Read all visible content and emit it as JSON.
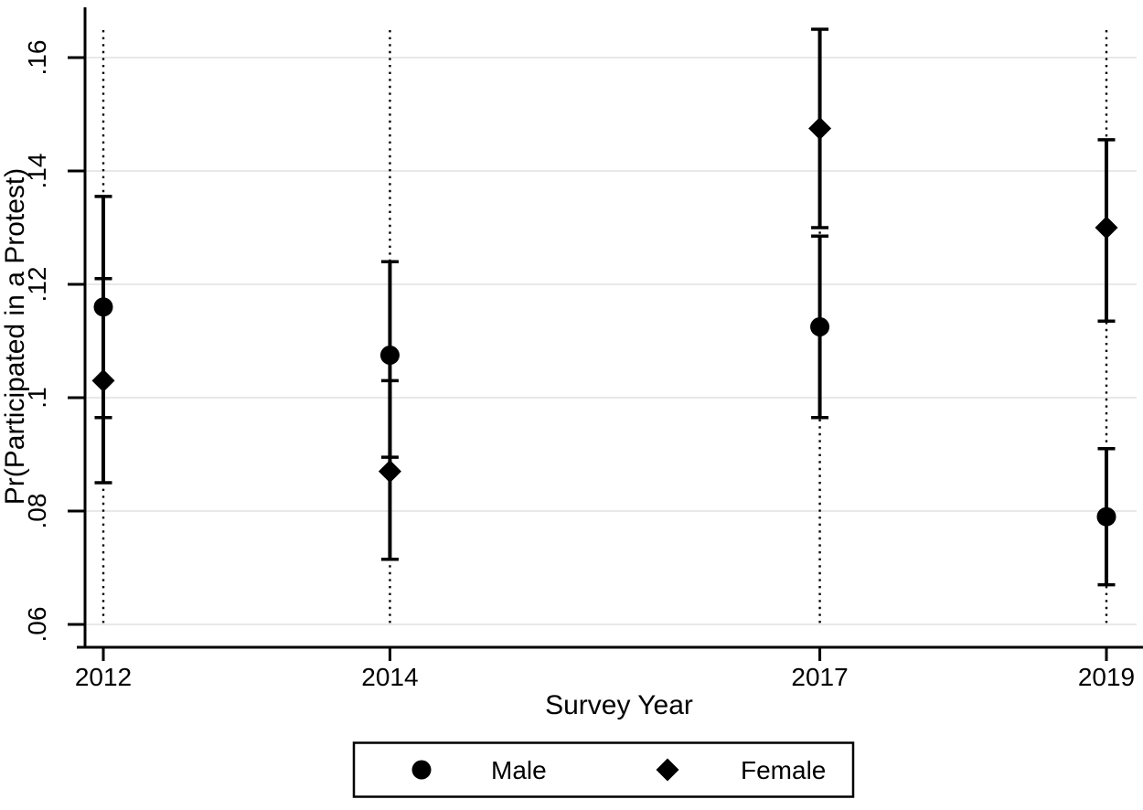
{
  "figure": {
    "background": "#ffffff",
    "foreground": "#000000",
    "gridline_color": "#e8e8e8",
    "reference_line_color": "#000000"
  },
  "chart_data": {
    "type": "scatter",
    "subtype": "point-estimates-with-confidence-intervals",
    "title": "",
    "xlabel": "Survey Year",
    "ylabel": "Pr(Participated in a Protest)",
    "x": [
      2012,
      2014,
      2017,
      2019
    ],
    "xtick_labels": [
      "2012",
      "2014",
      "2017",
      "2019"
    ],
    "yticks": [
      0.06,
      0.08,
      0.1,
      0.12,
      0.14,
      0.16
    ],
    "ytick_labels": [
      ".06",
      ".08",
      ".1",
      ".12",
      ".14",
      ".16"
    ],
    "ylim": [
      0.06,
      0.165
    ],
    "xlim": [
      2011.9,
      2019.25
    ],
    "grid": "horizontal",
    "reference_lines": {
      "style": "dotted-vertical",
      "x": [
        2012,
        2014,
        2017,
        2019
      ]
    },
    "series": [
      {
        "name": "Male",
        "marker": "circle",
        "values": [
          0.116,
          0.1075,
          0.1125,
          0.079
        ],
        "ci_low": [
          0.0965,
          0.0895,
          0.0965,
          0.067
        ],
        "ci_high": [
          0.1355,
          0.124,
          0.1285,
          0.091
        ]
      },
      {
        "name": "Female",
        "marker": "diamond",
        "values": [
          0.103,
          0.087,
          0.1475,
          0.13
        ],
        "ci_low": [
          0.085,
          0.0715,
          0.13,
          0.1135
        ],
        "ci_high": [
          0.121,
          0.103,
          0.165,
          0.1455
        ]
      }
    ],
    "legend": {
      "position": "bottom",
      "border": true,
      "entries": [
        {
          "marker": "circle",
          "label": "Male"
        },
        {
          "marker": "diamond",
          "label": "Female"
        }
      ]
    }
  }
}
